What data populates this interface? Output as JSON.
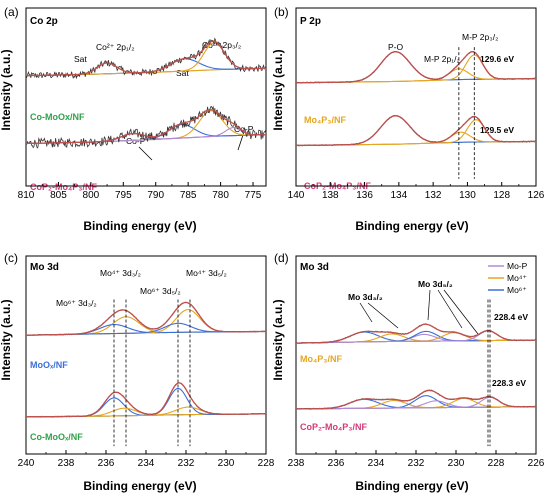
{
  "colors": {
    "raw": "#333333",
    "fit": "#c0504d",
    "background": "#bbbbbb",
    "blue": "#3a6fd8",
    "orange": "#e6a520",
    "purple": "#b08ad6",
    "green": "#2fa24a",
    "label_orange": "#e6a520",
    "label_blue": "#3a6fd8",
    "label_pink": "#d43a78"
  },
  "chart_data": [
    {
      "panel_label": "(a)",
      "title": "Co 2p",
      "type": "line",
      "xlabel": "Binding energy (eV)",
      "ylabel": "Intensity (a.u.)",
      "xlim": [
        810,
        773
      ],
      "xticks": [
        810,
        805,
        800,
        795,
        790,
        785,
        780,
        775
      ],
      "x_reversed": true,
      "annotations": [
        "Sat",
        "Co²⁺ 2p₁/₂",
        "Sat",
        "Co²⁺ 2p₃/₂",
        "Co-P",
        "Co-P"
      ],
      "samples": [
        {
          "name": "Co-MoOx/NF",
          "name_color": "green",
          "offset": 0.56,
          "background": [
            [
              810,
              0.0
            ],
            [
              800,
              0.02
            ],
            [
              790,
              0.05
            ],
            [
              780,
              0.09
            ],
            [
              773,
              0.11
            ]
          ],
          "components": [
            {
              "color": "orange",
              "center": 797.5,
              "width": 1.5,
              "height": 0.16
            },
            {
              "color": "blue",
              "center": 785.5,
              "width": 2.2,
              "height": 0.18
            },
            {
              "color": "orange",
              "center": 781.0,
              "width": 1.6,
              "height": 0.4
            }
          ],
          "noise": 0.05
        },
        {
          "name": "CoP₂-Mo₄P₃/NF",
          "name_color": "pink",
          "offset": 0.0,
          "background": [
            [
              810,
              0.05
            ],
            [
              800,
              0.07
            ],
            [
              790,
              0.11
            ],
            [
              780,
              0.16
            ],
            [
              773,
              0.18
            ]
          ],
          "components": [
            {
              "color": "purple",
              "center": 793.5,
              "width": 1.8,
              "height": 0.1
            },
            {
              "color": "blue",
              "center": 786.0,
              "width": 2.0,
              "height": 0.2
            },
            {
              "color": "orange",
              "center": 781.5,
              "width": 1.8,
              "height": 0.38
            },
            {
              "color": "purple",
              "center": 778.0,
              "width": 1.2,
              "height": 0.12
            }
          ],
          "noise": 0.07
        }
      ]
    },
    {
      "panel_label": "(b)",
      "title": "P 2p",
      "type": "line",
      "xlabel": "Binding energy (eV)",
      "ylabel": "Intensity (a.u.)",
      "xlim": [
        140,
        126
      ],
      "xticks": [
        140,
        138,
        136,
        134,
        132,
        130,
        128,
        126
      ],
      "x_reversed": true,
      "annotations": [
        "P-O",
        "M-P 2p₁/₂",
        "M-P 2p₃/₂",
        "129.6 eV",
        "129.5 eV"
      ],
      "samples": [
        {
          "name": "Mo₄P₃/NF",
          "name_color": "orange",
          "offset": 0.5,
          "background": [
            [
              140,
              0.0
            ],
            [
              134,
              0.02
            ],
            [
              130,
              0.05
            ],
            [
              126,
              0.06
            ]
          ],
          "components": [
            {
              "color": "blue",
              "center": 134.2,
              "width": 0.85,
              "height": 0.44
            },
            {
              "color": "orange",
              "center": 130.5,
              "width": 0.55,
              "height": 0.16
            },
            {
              "color": "orange",
              "center": 129.6,
              "width": 0.5,
              "height": 0.36
            }
          ],
          "noise": 0.008
        },
        {
          "name": "CoP₂-Mo₄P₃/NF",
          "name_color": "pink",
          "offset": 0.0,
          "background": [
            [
              140,
              0.02
            ],
            [
              134,
              0.04
            ],
            [
              130,
              0.07
            ],
            [
              126,
              0.08
            ]
          ],
          "components": [
            {
              "color": "blue",
              "center": 134.2,
              "width": 0.85,
              "height": 0.42
            },
            {
              "color": "orange",
              "center": 130.4,
              "width": 0.55,
              "height": 0.15
            },
            {
              "color": "orange",
              "center": 129.5,
              "width": 0.5,
              "height": 0.33
            }
          ],
          "noise": 0.008
        }
      ],
      "dashed_lines_x": [
        130.5,
        129.6
      ]
    },
    {
      "panel_label": "(c)",
      "title": "Mo 3d",
      "type": "line",
      "xlabel": "Binding energy (eV)",
      "ylabel": "Intensity (a.u.)",
      "xlim": [
        240,
        228
      ],
      "xticks": [
        240,
        238,
        236,
        234,
        232,
        230,
        228
      ],
      "x_reversed": true,
      "annotations": [
        "Mo⁶⁺ 3d₃/₂",
        "Mo⁴⁺ 3d₃/₂",
        "Mo⁶⁺ 3d₅/₂",
        "Mo⁴⁺ 3d₅/₂"
      ],
      "samples": [
        {
          "name": "MoOₓ/NF",
          "name_color": "blue",
          "offset": 0.5,
          "background": [
            [
              240,
              0.0
            ],
            [
              236,
              0.02
            ],
            [
              232,
              0.04
            ],
            [
              228,
              0.05
            ]
          ],
          "components": [
            {
              "color": "orange",
              "center": 235.0,
              "width": 0.65,
              "height": 0.22
            },
            {
              "color": "blue",
              "center": 235.6,
              "width": 0.7,
              "height": 0.12
            },
            {
              "color": "orange",
              "center": 231.9,
              "width": 0.6,
              "height": 0.3
            },
            {
              "color": "blue",
              "center": 232.4,
              "width": 0.65,
              "height": 0.12
            }
          ],
          "noise": 0.006
        },
        {
          "name": "Co-MoOₓ/NF",
          "name_color": "green",
          "offset": 0.0,
          "background": [
            [
              240,
              0.02
            ],
            [
              236,
              0.03
            ],
            [
              232,
              0.05
            ],
            [
              228,
              0.06
            ]
          ],
          "components": [
            {
              "color": "blue",
              "center": 235.6,
              "width": 0.5,
              "height": 0.24
            },
            {
              "color": "orange",
              "center": 235.1,
              "width": 0.6,
              "height": 0.1
            },
            {
              "color": "blue",
              "center": 232.4,
              "width": 0.45,
              "height": 0.35
            },
            {
              "color": "orange",
              "center": 231.9,
              "width": 0.6,
              "height": 0.1
            }
          ],
          "noise": 0.006
        }
      ],
      "dashed_lines_x": [
        235.6,
        235.0,
        232.4,
        231.8
      ]
    },
    {
      "panel_label": "(d)",
      "title": "Mo 3d",
      "type": "line",
      "xlabel": "Binding energy (eV)",
      "ylabel": "Intensity (a.u.)",
      "xlim": [
        238,
        226
      ],
      "xticks": [
        238,
        236,
        234,
        232,
        230,
        228,
        226
      ],
      "x_reversed": true,
      "annotations": [
        "Mo 3d₃/₂",
        "Mo 3d₅/₂",
        "228.4 eV",
        "228.3 eV"
      ],
      "legend": [
        {
          "label": "Mo-P",
          "color": "purple"
        },
        {
          "label": "Mo⁴⁺",
          "color": "orange"
        },
        {
          "label": "Mo⁶⁺",
          "color": "blue"
        }
      ],
      "legend_position": "top-right",
      "samples": [
        {
          "name": "Mo₄P₃/NF",
          "name_color": "orange",
          "offset": 0.5,
          "background": [
            [
              238,
              0.0
            ],
            [
              234,
              0.02
            ],
            [
              230,
              0.03
            ],
            [
              226,
              0.04
            ]
          ],
          "components": [
            {
              "color": "blue",
              "center": 234.6,
              "width": 0.7,
              "height": 0.13
            },
            {
              "color": "orange",
              "center": 233.2,
              "width": 0.6,
              "height": 0.1
            },
            {
              "color": "purple",
              "center": 231.6,
              "width": 0.55,
              "height": 0.09
            },
            {
              "color": "blue",
              "center": 231.5,
              "width": 0.55,
              "height": 0.13
            },
            {
              "color": "orange",
              "center": 230.1,
              "width": 0.55,
              "height": 0.11
            },
            {
              "color": "purple",
              "center": 228.4,
              "width": 0.45,
              "height": 0.13
            }
          ],
          "noise": 0.007
        },
        {
          "name": "CoP₂-Mo₄P₃/NF",
          "name_color": "pink",
          "offset": 0.0,
          "background": [
            [
              238,
              0.02
            ],
            [
              234,
              0.03
            ],
            [
              230,
              0.04
            ],
            [
              226,
              0.05
            ]
          ],
          "components": [
            {
              "color": "blue",
              "center": 234.6,
              "width": 0.7,
              "height": 0.12
            },
            {
              "color": "orange",
              "center": 233.1,
              "width": 0.6,
              "height": 0.1
            },
            {
              "color": "blue",
              "center": 231.5,
              "width": 0.55,
              "height": 0.16
            },
            {
              "color": "purple",
              "center": 231.0,
              "width": 0.55,
              "height": 0.09
            },
            {
              "color": "orange",
              "center": 229.6,
              "width": 0.55,
              "height": 0.12
            },
            {
              "color": "purple",
              "center": 228.3,
              "width": 0.45,
              "height": 0.13
            }
          ],
          "noise": 0.007
        }
      ],
      "dashed_lines_x": [
        228.4,
        228.3
      ]
    }
  ]
}
